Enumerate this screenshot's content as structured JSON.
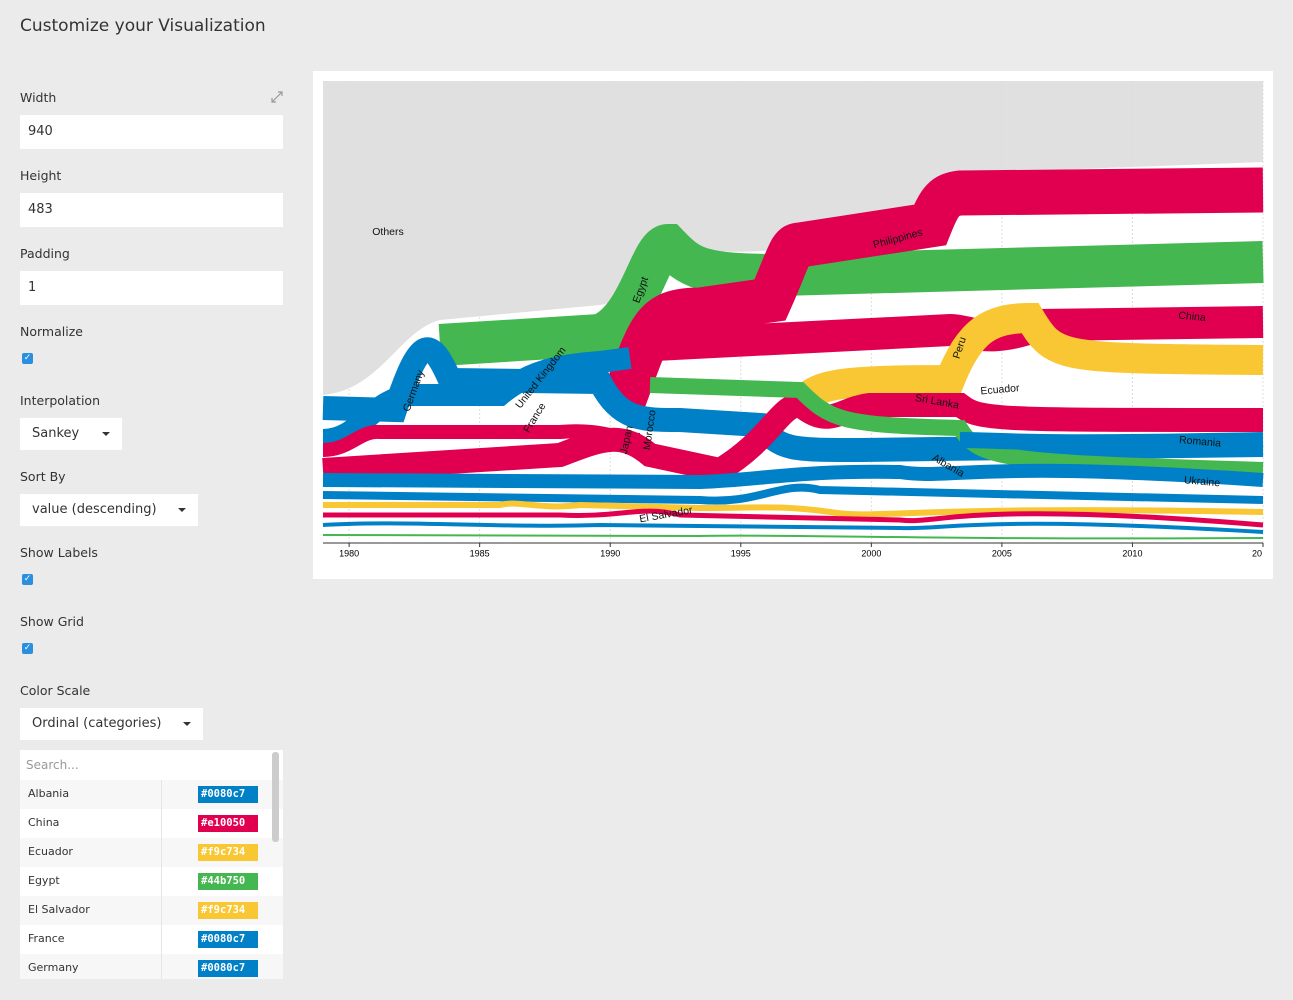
{
  "header": {
    "title": "Customize your Visualization"
  },
  "options": {
    "width": {
      "label": "Width",
      "value": "940"
    },
    "height": {
      "label": "Height",
      "value": "483"
    },
    "padding": {
      "label": "Padding",
      "value": "1"
    },
    "normalize": {
      "label": "Normalize",
      "checked": true
    },
    "interpolation": {
      "label": "Interpolation",
      "value": "Sankey"
    },
    "sort_by": {
      "label": "Sort By",
      "value": "value (descending)"
    },
    "show_labels": {
      "label": "Show Labels",
      "checked": true
    },
    "show_grid": {
      "label": "Show Grid",
      "checked": true
    },
    "color_scale": {
      "label": "Color Scale",
      "value": "Ordinal (categories)"
    }
  },
  "color_list": {
    "search_placeholder": "Search...",
    "items": [
      {
        "name": "Albania",
        "color": "#0080c7"
      },
      {
        "name": "China",
        "color": "#e10050"
      },
      {
        "name": "Ecuador",
        "color": "#f9c734"
      },
      {
        "name": "Egypt",
        "color": "#44b750"
      },
      {
        "name": "El Salvador",
        "color": "#f9c734"
      },
      {
        "name": "France",
        "color": "#0080c7"
      },
      {
        "name": "Germany",
        "color": "#0080c7"
      }
    ]
  },
  "visualization": {
    "xlim": [
      1979,
      2015
    ],
    "xticks": [
      1980,
      1985,
      1990,
      1995,
      2000,
      2005,
      2010,
      {
        "value": 2015,
        "label": "20"
      }
    ],
    "labels": [
      "Others",
      "Philippines",
      "Egypt",
      "Germany",
      "United Kingdom",
      "France",
      "Japan",
      "Morocco",
      "El Salvador",
      "Peru",
      "Sri Lanka",
      "Ecuador",
      "China",
      "Romania",
      "Ukraine",
      "Albania"
    ]
  }
}
